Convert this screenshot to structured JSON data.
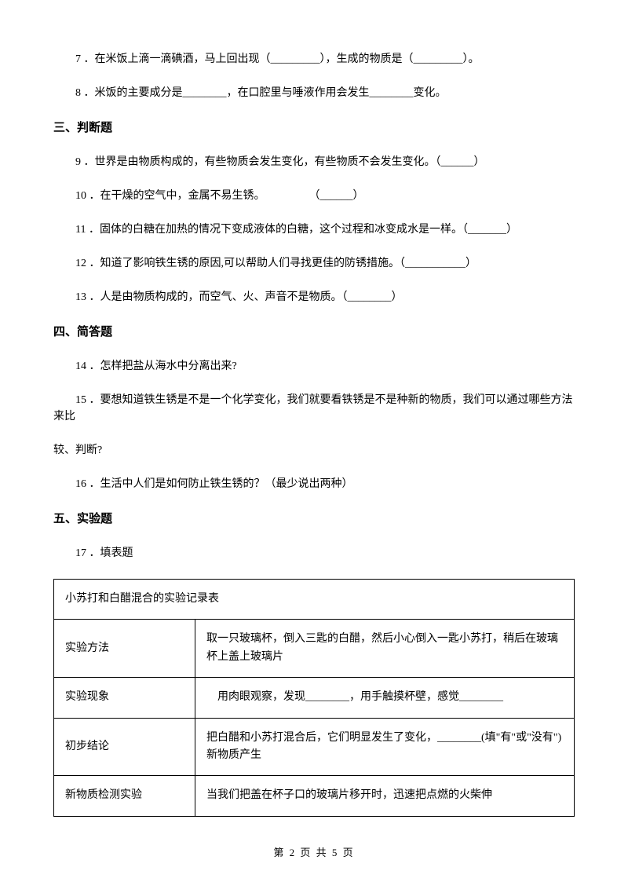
{
  "questions": {
    "q7": "7 ．在米饭上滴一滴碘酒，马上回出现（_________），生成的物质是（_________）。",
    "q8": "8 ．米饭的主要成分是________，在口腔里与唾液作用会发生________变化。",
    "q9": "9 ．世界是由物质构成的，有些物质会发生变化，有些物质不会发生变化。（______）",
    "q10": "10 ．在干燥的空气中，金属不易生锈。　　　　　（______）",
    "q11": "11 ．固体的白糖在加热的情况下变成液体的白糖，这个过程和冰变成水是一样。（_______）",
    "q12": "12 ．知道了影响铁生锈的原因,可以帮助人们寻找更佳的防锈措施。（___________）",
    "q13": "13 ．人是由物质构成的，而空气、火、声音不是物质。（________）",
    "q14": "14 ．怎样把盐从海水中分离出来?",
    "q15a": "15 ．要想知道铁生锈是不是一个化学变化，我们就要看铁锈是不是种新的物质，我们可以通过哪些方法来比",
    "q15b": "较、判断?",
    "q16": "16 ．生活中人们是如何防止铁生锈的？（最少说出两种）",
    "q17": "17 ．填表题"
  },
  "sections": {
    "s3": "三、判断题",
    "s4": "四、简答题",
    "s5": "五、实验题"
  },
  "table": {
    "title": "小苏打和白醋混合的实验记录表",
    "rows": {
      "r1label": "实验方法",
      "r1content": "取一只玻璃杯，倒入三匙的白醋，然后小心倒入一匙小苏打，稍后在玻璃杯上盖上玻璃片",
      "r2label": "实验现象",
      "r2content": "　用肉眼观察，发现________，用手触摸杯壁，感觉________",
      "r3label": "初步结论",
      "r3content": "把白醋和小苏打混合后，它们明显发生了变化，________(填\"有\"或\"没有\")新物质产生",
      "r4label": "新物质检测实验",
      "r4content": "当我们把盖在杯子口的玻璃片移开时，迅速把点燃的火柴伸"
    }
  },
  "footer": "第 2 页 共 5 页"
}
